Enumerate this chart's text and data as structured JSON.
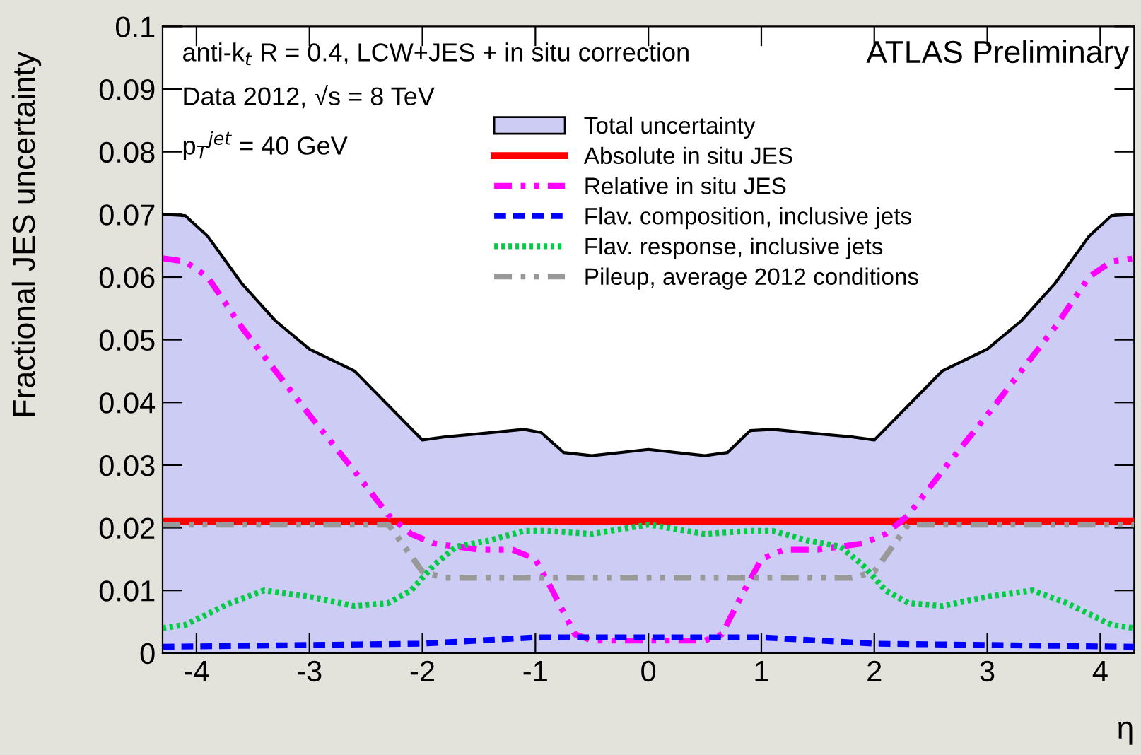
{
  "chart_data": {
    "type": "line",
    "xlabel": "η",
    "ylabel": "Fractional JES uncertainty",
    "xlim": [
      -4.3,
      4.3
    ],
    "ylim": [
      0,
      0.1
    ],
    "xticks": [
      -4,
      -3,
      -2,
      -1,
      0,
      1,
      2,
      3,
      4
    ],
    "yticks": [
      0,
      0.01,
      0.02,
      0.03,
      0.04,
      0.05,
      0.06,
      0.07,
      0.08,
      0.09,
      0.1
    ],
    "grid": false,
    "legend": "top",
    "marker": "none",
    "annotations": [
      "anti-k$_{t}$ R = 0.4, LCW+JES + in situ correction",
      "Data 2012, √s = 8 TeV",
      "p$_{T}$$^{jet}$ = 40 GeV",
      "ATLAS Preliminary"
    ],
    "series": [
      {
        "name": "Total uncertainty",
        "type": "area",
        "color": "#ccccf5",
        "x": [
          -4.3,
          -4.1,
          -3.9,
          -3.6,
          -3.3,
          -3.0,
          -2.6,
          -2.3,
          -2.0,
          -1.8,
          -1.5,
          -1.1,
          -0.95,
          -0.75,
          -0.5,
          0,
          0.5,
          0.7,
          0.9,
          1.1,
          1.5,
          1.8,
          2.0,
          2.3,
          2.6,
          3.0,
          3.3,
          3.6,
          3.9,
          4.1,
          4.3
        ],
        "values": [
          0.07,
          0.0698,
          0.0665,
          0.059,
          0.053,
          0.0485,
          0.045,
          0.0395,
          0.034,
          0.0345,
          0.035,
          0.0357,
          0.0352,
          0.032,
          0.0315,
          0.0325,
          0.0315,
          0.032,
          0.0355,
          0.0357,
          0.035,
          0.0345,
          0.034,
          0.0395,
          0.045,
          0.0485,
          0.053,
          0.059,
          0.0665,
          0.0698,
          0.07
        ]
      },
      {
        "name": "Absolute in situ JES",
        "color": "#ff0000",
        "line_style": "solid",
        "x": [
          -4.3,
          4.3
        ],
        "values": [
          0.021,
          0.021
        ]
      },
      {
        "name": "Relative in situ JES",
        "color": "#ff00ff",
        "line_style": "dashdot",
        "x": [
          -4.3,
          -4.1,
          -3.9,
          -3.6,
          -3.0,
          -2.6,
          -2.3,
          -2.1,
          -1.9,
          -1.5,
          -1.2,
          -1.0,
          -0.85,
          -0.65,
          -0.5,
          0,
          0.5,
          0.65,
          0.85,
          1.0,
          1.2,
          1.5,
          1.9,
          2.1,
          2.3,
          2.6,
          3.0,
          3.6,
          3.9,
          4.1,
          4.3
        ],
        "values": [
          0.063,
          0.0625,
          0.06,
          0.052,
          0.038,
          0.029,
          0.022,
          0.019,
          0.0175,
          0.0165,
          0.0165,
          0.015,
          0.01,
          0.003,
          0.002,
          0.002,
          0.002,
          0.003,
          0.01,
          0.015,
          0.0165,
          0.0165,
          0.0175,
          0.019,
          0.022,
          0.029,
          0.038,
          0.052,
          0.06,
          0.0625,
          0.063
        ]
      },
      {
        "name": "Flav. composition, inclusive jets",
        "color": "#0000ff",
        "line_style": "dashed",
        "x": [
          -4.3,
          -2,
          -1.5,
          -1,
          0,
          1,
          1.5,
          2,
          4.3
        ],
        "values": [
          0.001,
          0.0015,
          0.002,
          0.0025,
          0.0025,
          0.0025,
          0.002,
          0.0015,
          0.001
        ]
      },
      {
        "name": "Flav. response, inclusive jets",
        "color": "#00cc44",
        "line_style": "dotted",
        "x": [
          -4.3,
          -4.1,
          -3.7,
          -3.4,
          -3.0,
          -2.6,
          -2.3,
          -2.1,
          -1.9,
          -1.7,
          -1.4,
          -1.1,
          -0.9,
          -0.5,
          0,
          0.5,
          0.9,
          1.1,
          1.4,
          1.7,
          1.9,
          2.1,
          2.3,
          2.6,
          3.0,
          3.4,
          3.7,
          4.1,
          4.3
        ],
        "values": [
          0.004,
          0.0045,
          0.008,
          0.01,
          0.009,
          0.0075,
          0.008,
          0.01,
          0.014,
          0.017,
          0.018,
          0.0195,
          0.0195,
          0.019,
          0.0205,
          0.019,
          0.0195,
          0.0195,
          0.018,
          0.017,
          0.014,
          0.01,
          0.008,
          0.0075,
          0.009,
          0.01,
          0.008,
          0.0045,
          0.004
        ]
      },
      {
        "name": "Pileup, average 2012 conditions",
        "color": "#999999",
        "line_style": "dashdot",
        "x": [
          -4.3,
          -2.3,
          -2.0,
          -1.8,
          1.8,
          2.0,
          2.3,
          4.3
        ],
        "values": [
          0.0205,
          0.0205,
          0.013,
          0.012,
          0.012,
          0.013,
          0.0205,
          0.0205
        ]
      }
    ]
  }
}
